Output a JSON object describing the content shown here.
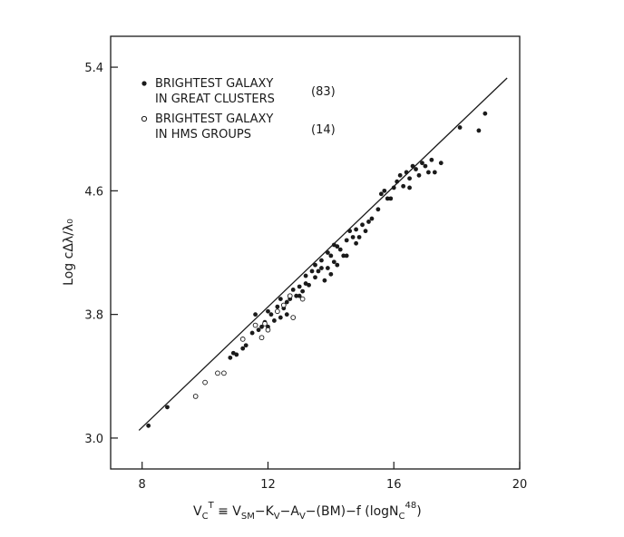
{
  "chart_data": {
    "type": "scatter",
    "xlabel": "VcT ≡ VSM−KV−AV−(BM)−f (logNC⁴⁸)",
    "xlabel_parts": {
      "base": "V",
      "sub1": "C",
      "sup1": "T",
      "mid": " ≡ V",
      "sub2": "SM",
      "mid2": "−K",
      "sub3": "V",
      "mid3": "−A",
      "sub4": "V",
      "mid4": "−(BM)−f (logN",
      "sub5": "C",
      "sup5": "48",
      "end": ")"
    },
    "ylabel": "Log cΔλ/λ₀",
    "xlim": [
      7.0,
      20.0
    ],
    "ylim": [
      2.8,
      5.6
    ],
    "x_ticks": [
      8,
      12,
      16,
      20
    ],
    "x_tick_labels": [
      "8",
      "12",
      "16",
      "20"
    ],
    "y_ticks": [
      3.0,
      3.8,
      4.6,
      5.4
    ],
    "y_tick_labels": [
      "3.0",
      "3.8",
      "4.6",
      "5.4"
    ],
    "legend_position": "top-left",
    "legend": [
      {
        "marker": "filled",
        "line1": "BRIGHTEST GALAXY",
        "line2": "IN GREAT CLUSTERS",
        "count": "(83)"
      },
      {
        "marker": "open",
        "line1": "BRIGHTEST GALAXY",
        "line2": "IN HMS GROUPS",
        "count": "(14)"
      }
    ],
    "fit_line": {
      "x": [
        7.9,
        19.6
      ],
      "y": [
        3.05,
        5.33
      ]
    },
    "series": [
      {
        "marker": "filled",
        "points": [
          [
            8.2,
            3.08
          ],
          [
            8.8,
            3.2
          ],
          [
            10.8,
            3.52
          ],
          [
            10.9,
            3.55
          ],
          [
            11.0,
            3.54
          ],
          [
            11.2,
            3.58
          ],
          [
            11.3,
            3.6
          ],
          [
            11.5,
            3.68
          ],
          [
            11.6,
            3.8
          ],
          [
            11.8,
            3.72
          ],
          [
            11.9,
            3.75
          ],
          [
            12.0,
            3.72
          ],
          [
            12.1,
            3.8
          ],
          [
            12.2,
            3.76
          ],
          [
            12.3,
            3.85
          ],
          [
            12.4,
            3.78
          ],
          [
            12.5,
            3.84
          ],
          [
            12.6,
            3.88
          ],
          [
            12.7,
            3.9
          ],
          [
            12.8,
            3.96
          ],
          [
            12.9,
            3.92
          ],
          [
            13.0,
            3.98
          ],
          [
            13.1,
            3.95
          ],
          [
            13.2,
            4.0
          ],
          [
            13.3,
            3.99
          ],
          [
            13.4,
            4.08
          ],
          [
            13.5,
            4.04
          ],
          [
            13.6,
            4.08
          ],
          [
            13.7,
            4.15
          ],
          [
            13.8,
            4.02
          ],
          [
            13.9,
            4.1
          ],
          [
            14.0,
            4.18
          ],
          [
            14.1,
            4.14
          ],
          [
            14.2,
            4.24
          ],
          [
            14.3,
            4.22
          ],
          [
            14.4,
            4.18
          ],
          [
            14.5,
            4.28
          ],
          [
            14.6,
            4.34
          ],
          [
            14.7,
            4.3
          ],
          [
            14.8,
            4.35
          ],
          [
            14.9,
            4.3
          ],
          [
            15.0,
            4.38
          ],
          [
            15.1,
            4.34
          ],
          [
            15.2,
            4.4
          ],
          [
            15.5,
            4.48
          ],
          [
            15.6,
            4.58
          ],
          [
            15.7,
            4.6
          ],
          [
            15.9,
            4.55
          ],
          [
            16.1,
            4.66
          ],
          [
            16.2,
            4.7
          ],
          [
            16.3,
            4.63
          ],
          [
            16.4,
            4.72
          ],
          [
            16.5,
            4.68
          ],
          [
            16.6,
            4.76
          ],
          [
            16.7,
            4.74
          ],
          [
            16.8,
            4.7
          ],
          [
            16.9,
            4.78
          ],
          [
            17.0,
            4.76
          ],
          [
            17.1,
            4.72
          ],
          [
            17.2,
            4.8
          ],
          [
            17.3,
            4.72
          ],
          [
            17.5,
            4.78
          ],
          [
            18.1,
            5.01
          ],
          [
            18.7,
            4.99
          ],
          [
            18.9,
            5.1
          ],
          [
            13.2,
            4.05
          ],
          [
            13.5,
            4.12
          ],
          [
            14.0,
            4.06
          ],
          [
            14.2,
            4.12
          ],
          [
            14.5,
            4.18
          ],
          [
            13.9,
            4.2
          ],
          [
            14.8,
            4.26
          ],
          [
            15.3,
            4.42
          ],
          [
            16.0,
            4.62
          ],
          [
            12.6,
            3.8
          ],
          [
            12.0,
            3.82
          ],
          [
            11.7,
            3.7
          ],
          [
            13.0,
            3.92
          ],
          [
            14.1,
            4.25
          ],
          [
            16.5,
            4.62
          ],
          [
            15.8,
            4.55
          ],
          [
            13.7,
            4.1
          ],
          [
            12.4,
            3.9
          ]
        ]
      },
      {
        "marker": "open",
        "points": [
          [
            9.7,
            3.27
          ],
          [
            10.0,
            3.36
          ],
          [
            10.4,
            3.42
          ],
          [
            10.6,
            3.42
          ],
          [
            11.2,
            3.64
          ],
          [
            11.6,
            3.73
          ],
          [
            11.8,
            3.65
          ],
          [
            12.3,
            3.82
          ],
          [
            12.5,
            3.86
          ],
          [
            12.8,
            3.78
          ],
          [
            12.0,
            3.7
          ],
          [
            12.7,
            3.92
          ],
          [
            13.1,
            3.9
          ],
          [
            11.9,
            3.74
          ]
        ]
      }
    ]
  }
}
